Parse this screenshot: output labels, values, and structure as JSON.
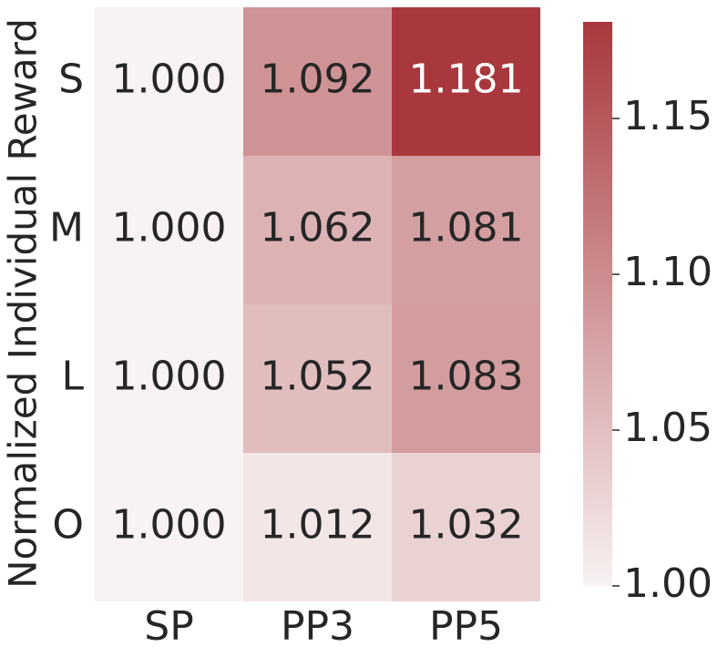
{
  "chart_data": {
    "type": "heatmap",
    "ylabel": "Normalized Individual Reward",
    "rows": [
      "S",
      "M",
      "L",
      "O"
    ],
    "columns": [
      "SP",
      "PP3",
      "PP5"
    ],
    "values": [
      [
        1.0,
        1.092,
        1.181
      ],
      [
        1.0,
        1.062,
        1.081
      ],
      [
        1.0,
        1.052,
        1.083
      ],
      [
        1.0,
        1.012,
        1.032
      ]
    ],
    "value_labels": [
      [
        "1.000",
        "1.092",
        "1.181"
      ],
      [
        "1.000",
        "1.062",
        "1.081"
      ],
      [
        "1.000",
        "1.052",
        "1.083"
      ],
      [
        "1.000",
        "1.012",
        "1.032"
      ]
    ],
    "clim": [
      1.0,
      1.181
    ],
    "colors": [
      "#f8f2f2",
      "#a8383d"
    ],
    "cticks": [
      {
        "value": 1.0,
        "label": "1.00"
      },
      {
        "value": 1.05,
        "label": "1.05"
      },
      {
        "value": 1.1,
        "label": "1.10"
      },
      {
        "value": 1.15,
        "label": "1.15"
      }
    ]
  }
}
